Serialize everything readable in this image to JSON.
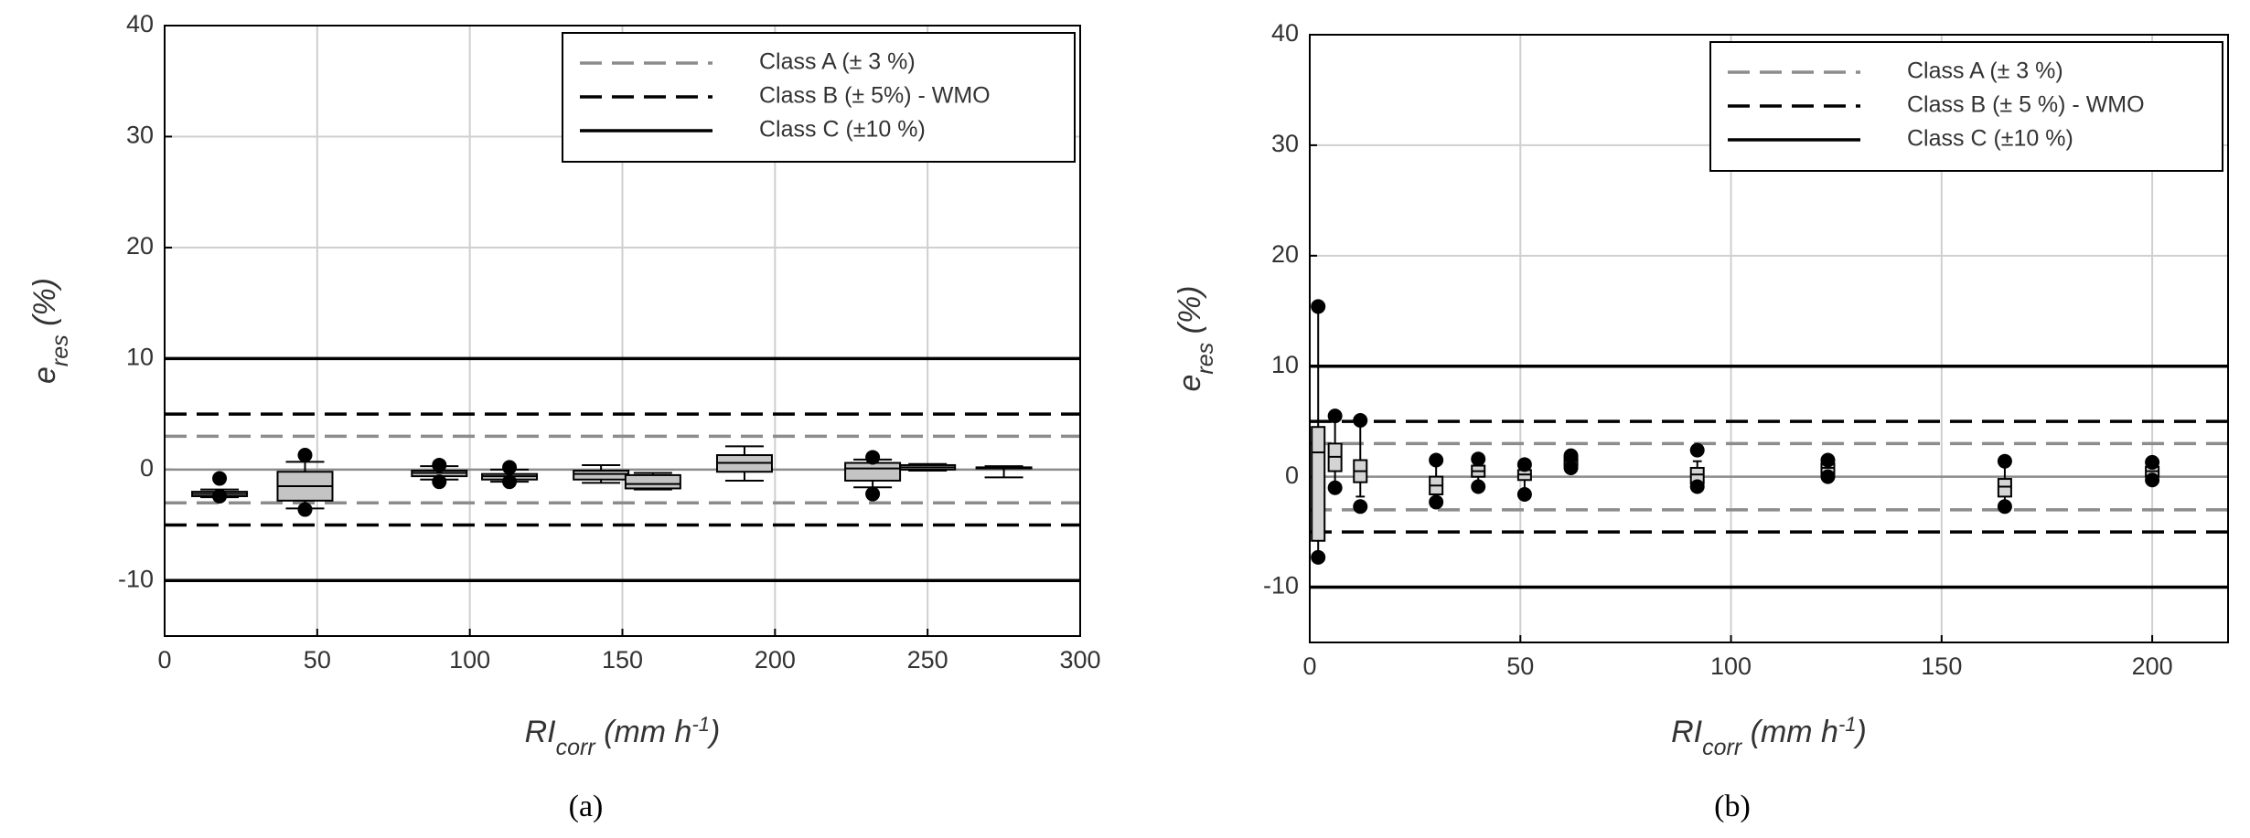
{
  "chart_data": [
    {
      "type": "box",
      "panel_label": "(a)",
      "ylabel": [
        {
          "text": "e"
        },
        {
          "text": "res",
          "shift": "sub"
        },
        {
          "text": " (%)"
        }
      ],
      "xlabel": [
        {
          "text": "RI"
        },
        {
          "text": "corr",
          "shift": "sub"
        },
        {
          "text": " (mm h"
        },
        {
          "text": "-1",
          "shift": "super"
        },
        {
          "text": ")"
        }
      ],
      "xlim": [
        0,
        300
      ],
      "xticks": [
        0,
        50,
        100,
        150,
        200,
        250,
        300
      ],
      "ylim": [
        -15,
        40
      ],
      "yticks": [
        -10,
        0,
        10,
        20,
        30,
        40
      ],
      "grid": true,
      "legend": "top-right",
      "box_color": "#c4c4c4",
      "zero_line": 0,
      "reference_lines": [
        {
          "name": "Class A (± 3 %)",
          "values": [
            3,
            -3
          ],
          "color": "#8c8c8c",
          "style": "dashed"
        },
        {
          "name": "Class B (± 5%) - WMO",
          "values": [
            5,
            -5
          ],
          "color": "#000000",
          "style": "dashed"
        },
        {
          "name": "Class C (±10 %)",
          "values": [
            10,
            -10
          ],
          "color": "#000000",
          "style": "solid"
        }
      ],
      "boxes": [
        {
          "x": 18,
          "whisker_low": -2.5,
          "q1": -2.4,
          "median": -2.2,
          "q3": -2.0,
          "whisker_high": -1.8,
          "outliers": [
            -0.8,
            -2.4
          ]
        },
        {
          "x": 46,
          "whisker_low": -3.5,
          "q1": -2.8,
          "median": -1.5,
          "q3": -0.2,
          "whisker_high": 0.7,
          "outliers": [
            1.3,
            -3.6
          ]
        },
        {
          "x": 90,
          "whisker_low": -0.9,
          "q1": -0.6,
          "median": -0.3,
          "q3": -0.1,
          "whisker_high": 0.3,
          "outliers": [
            0.4,
            -1.1
          ]
        },
        {
          "x": 113,
          "whisker_low": -1.1,
          "q1": -0.9,
          "median": -0.6,
          "q3": -0.4,
          "whisker_high": 0,
          "outliers": [
            0.2,
            -1.1
          ]
        },
        {
          "x": 143,
          "whisker_low": -1.2,
          "q1": -0.9,
          "median": -0.4,
          "q3": -0.1,
          "whisker_high": 0.4,
          "outliers": []
        },
        {
          "x": 160,
          "whisker_low": -1.8,
          "q1": -1.7,
          "median": -1.3,
          "q3": -0.5,
          "whisker_high": -0.3,
          "outliers": []
        },
        {
          "x": 190,
          "whisker_low": -1.0,
          "q1": -0.2,
          "median": 0.6,
          "q3": 1.3,
          "whisker_high": 2.1,
          "outliers": []
        },
        {
          "x": 232,
          "whisker_low": -1.6,
          "q1": -1.0,
          "median": 0.1,
          "q3": 0.6,
          "whisker_high": 0.9,
          "outliers": [
            1.1,
            -2.2
          ]
        },
        {
          "x": 250,
          "whisker_low": -0.1,
          "q1": 0,
          "median": 0.2,
          "q3": 0.4,
          "whisker_high": 0.5,
          "outliers": []
        },
        {
          "x": 275,
          "whisker_low": -0.7,
          "q1": 0.1,
          "median": 0.15,
          "q3": 0.2,
          "whisker_high": 0.3,
          "outliers": []
        }
      ]
    },
    {
      "type": "box",
      "panel_label": "(b)",
      "ylabel": [
        {
          "text": "e"
        },
        {
          "text": "res",
          "shift": "sub"
        },
        {
          "text": " (%)"
        }
      ],
      "xlabel": [
        {
          "text": "RI"
        },
        {
          "text": "corr",
          "shift": "sub"
        },
        {
          "text": " (mm h"
        },
        {
          "text": "-1",
          "shift": "super"
        },
        {
          "text": ")"
        }
      ],
      "xlim": [
        0,
        218
      ],
      "xticks": [
        0,
        50,
        100,
        150,
        200
      ],
      "ylim": [
        -15,
        40
      ],
      "yticks": [
        -10,
        0,
        10,
        20,
        30,
        40
      ],
      "grid": true,
      "legend": "top-right",
      "box_color": "#d4d4d4",
      "zero_line": 0,
      "reference_lines": [
        {
          "name": "Class A (± 3 %)",
          "values": [
            3,
            -3
          ],
          "color": "#8c8c8c",
          "style": "dashed"
        },
        {
          "name": "Class B (± 5 %) - WMO",
          "values": [
            5,
            -5
          ],
          "color": "#000000",
          "style": "dashed"
        },
        {
          "name": "Class C (±10 %)",
          "values": [
            10,
            -10
          ],
          "color": "#000000",
          "style": "solid"
        }
      ],
      "boxes": [
        {
          "x": 2,
          "whisker_low": -7,
          "q1": -5.8,
          "median": 2.2,
          "q3": 4.5,
          "whisker_high": 15,
          "outliers": [
            15.4,
            -7.3
          ]
        },
        {
          "x": 6,
          "whisker_low": -0.7,
          "q1": 0.5,
          "median": 1.8,
          "q3": 3,
          "whisker_high": 5.2,
          "outliers": [
            5.5,
            -1.0
          ]
        },
        {
          "x": 12,
          "whisker_low": -1.8,
          "q1": -0.5,
          "median": 0.5,
          "q3": 1.5,
          "whisker_high": 5,
          "outliers": [
            5.1,
            -2.7
          ]
        },
        {
          "x": 30,
          "whisker_low": -2.2,
          "q1": -1.6,
          "median": -0.8,
          "q3": 0,
          "whisker_high": 1.2,
          "outliers": [
            1.5,
            -2.3
          ]
        },
        {
          "x": 40,
          "whisker_low": -0.6,
          "q1": 0,
          "median": 0.5,
          "q3": 1.0,
          "whisker_high": 1.4,
          "outliers": [
            1.6,
            -0.9
          ]
        },
        {
          "x": 51,
          "whisker_low": -1.2,
          "q1": -0.3,
          "median": 0.2,
          "q3": 0.6,
          "whisker_high": 1.0,
          "outliers": [
            1.1,
            -1.6
          ]
        },
        {
          "x": 62,
          "whisker_low": 0.7,
          "q1": 1.0,
          "median": 1.4,
          "q3": 1.8,
          "whisker_high": 2,
          "outliers": [
            1.9,
            0.8
          ]
        },
        {
          "x": 92,
          "whisker_low": -1.0,
          "q1": -0.6,
          "median": 0.2,
          "q3": 0.8,
          "whisker_high": 1.4,
          "outliers": [
            2.4,
            -0.9
          ]
        },
        {
          "x": 123,
          "whisker_low": -0.2,
          "q1": 0.2,
          "median": 0.8,
          "q3": 1.2,
          "whisker_high": 1.5,
          "outliers": [
            1.5,
            0
          ]
        },
        {
          "x": 165,
          "whisker_low": -2.5,
          "q1": -1.8,
          "median": -0.9,
          "q3": -0.2,
          "whisker_high": 1.2,
          "outliers": [
            1.4,
            -2.7
          ]
        },
        {
          "x": 200,
          "whisker_low": -0.3,
          "q1": 0,
          "median": 0.5,
          "q3": 0.9,
          "whisker_high": 1.2,
          "outliers": [
            1.3,
            -0.3
          ]
        }
      ]
    }
  ]
}
